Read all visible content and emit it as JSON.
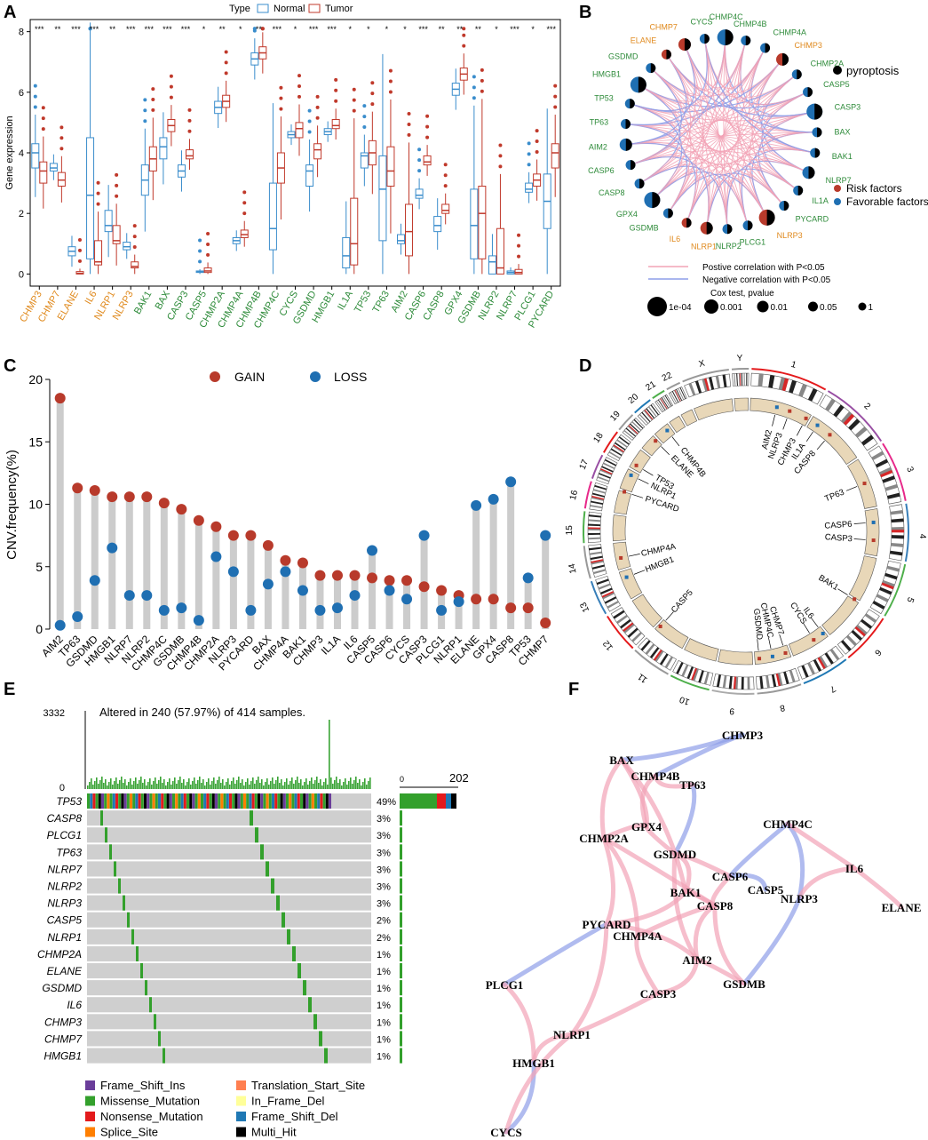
{
  "panel_labels": {
    "a": "A",
    "b": "B",
    "c": "C",
    "d": "D",
    "e": "E",
    "f": "F"
  },
  "colors": {
    "normal": "#3a8dcc",
    "tumor": "#c0392b",
    "risk_label": "#e08a1e",
    "fav_label": "#2e8b3a",
    "gain": "#b83a2b",
    "loss": "#1f6fb2",
    "stick": "#cccccc",
    "chrom_fill": "#e8d7b8",
    "pos_corr": "#f2a3b6",
    "neg_corr": "#8e9ee8",
    "missense": "#3aa335",
    "grey_cell": "#cfcfcf"
  },
  "chart_data": [
    {
      "panel": "A",
      "type": "box",
      "ylabel": "Gene expression",
      "legend_title": "Type",
      "legend": [
        "Normal",
        "Tumor"
      ],
      "ylim": [
        -0.4,
        8.4
      ],
      "yticks": [
        "0",
        "2",
        "4",
        "6",
        "8"
      ],
      "genes": [
        {
          "name": "CHMP3",
          "risk": true,
          "sig": "***",
          "normal": [
            3.5,
            4.0,
            4.3,
            4.5
          ],
          "tumor": [
            3.0,
            3.4,
            3.7,
            3.9
          ]
        },
        {
          "name": "CHMP7",
          "risk": true,
          "sig": "**",
          "normal": [
            3.4,
            3.5,
            3.65,
            3.75
          ],
          "tumor": [
            2.9,
            3.1,
            3.35,
            3.55
          ]
        },
        {
          "name": "ELANE",
          "risk": true,
          "sig": "***",
          "normal": [
            0.6,
            0.75,
            0.9,
            1.1
          ],
          "tumor": [
            0.0,
            0.02,
            0.08,
            0.25
          ]
        },
        {
          "name": "IL6",
          "risk": true,
          "sig": "***",
          "normal": [
            0.5,
            2.6,
            4.5,
            5.8
          ],
          "tumor": [
            0.3,
            0.4,
            1.1,
            3.6
          ]
        },
        {
          "name": "NLRP1",
          "risk": true,
          "sig": "**",
          "normal": [
            1.4,
            1.6,
            2.1,
            2.6
          ],
          "tumor": [
            1.0,
            1.1,
            1.6,
            2.1
          ]
        },
        {
          "name": "NLRP3",
          "risk": true,
          "sig": "***",
          "normal": [
            0.8,
            0.9,
            1.05,
            1.3
          ],
          "tumor": [
            0.2,
            0.25,
            0.4,
            0.7
          ]
        },
        {
          "name": "BAK1",
          "risk": false,
          "sig": "***",
          "normal": [
            2.6,
            3.1,
            3.6,
            4.0
          ],
          "tumor": [
            3.4,
            3.8,
            4.2,
            4.6
          ]
        },
        {
          "name": "BAX",
          "risk": false,
          "sig": "***",
          "normal": [
            3.8,
            4.2,
            4.5,
            4.8
          ],
          "tumor": [
            4.7,
            4.9,
            5.1,
            5.3
          ]
        },
        {
          "name": "CASP3",
          "risk": false,
          "sig": "***",
          "normal": [
            3.2,
            3.4,
            3.6,
            3.9
          ],
          "tumor": [
            3.8,
            3.9,
            4.1,
            4.5
          ]
        },
        {
          "name": "CASP5",
          "risk": false,
          "sig": "*",
          "normal": [
            0.05,
            0.08,
            0.1,
            0.15
          ],
          "tumor": [
            0.05,
            0.1,
            0.2,
            0.4
          ]
        },
        {
          "name": "CHMP2A",
          "risk": false,
          "sig": "**",
          "normal": [
            5.3,
            5.5,
            5.7,
            5.9
          ],
          "tumor": [
            5.5,
            5.7,
            5.9,
            6.2
          ]
        },
        {
          "name": "CHMP4A",
          "risk": false,
          "sig": "*",
          "normal": [
            1.0,
            1.1,
            1.2,
            1.4
          ],
          "tumor": [
            1.2,
            1.3,
            1.45,
            1.6
          ]
        },
        {
          "name": "CHMP4B",
          "risk": false,
          "sig": "**",
          "normal": [
            6.9,
            7.1,
            7.3,
            7.5
          ],
          "tumor": [
            7.1,
            7.3,
            7.5,
            7.8
          ]
        },
        {
          "name": "CHMP4C",
          "risk": false,
          "sig": "***",
          "normal": [
            0.8,
            1.5,
            3.0,
            3.9
          ],
          "tumor": [
            3.0,
            3.5,
            4.0,
            4.5
          ]
        },
        {
          "name": "CYCS",
          "risk": false,
          "sig": "*",
          "normal": [
            4.5,
            4.6,
            4.7,
            4.9
          ],
          "tumor": [
            4.5,
            4.8,
            5.0,
            5.3
          ]
        },
        {
          "name": "GSDMD",
          "risk": false,
          "sig": "***",
          "normal": [
            2.9,
            3.4,
            3.6,
            4.0
          ],
          "tumor": [
            3.8,
            4.1,
            4.3,
            4.6
          ]
        },
        {
          "name": "HMGB1",
          "risk": false,
          "sig": "***",
          "normal": [
            4.6,
            4.7,
            4.8,
            5.0
          ],
          "tumor": [
            4.8,
            4.9,
            5.1,
            5.3
          ]
        },
        {
          "name": "IL1A",
          "risk": false,
          "sig": "*",
          "normal": [
            0.2,
            0.6,
            1.2,
            3.5
          ],
          "tumor": [
            0.3,
            1.0,
            2.5,
            3.6
          ]
        },
        {
          "name": "TP53",
          "risk": false,
          "sig": "*",
          "normal": [
            3.5,
            3.9,
            4.0,
            4.4
          ],
          "tumor": [
            3.6,
            4.0,
            4.4,
            4.8
          ]
        },
        {
          "name": "TP63",
          "risk": false,
          "sig": "*",
          "normal": [
            1.1,
            2.8,
            3.9,
            4.6
          ],
          "tumor": [
            2.9,
            3.4,
            4.2,
            4.9
          ]
        },
        {
          "name": "AIM2",
          "risk": false,
          "sig": "*",
          "normal": [
            1.0,
            1.1,
            1.3,
            2.3
          ],
          "tumor": [
            0.6,
            1.4,
            2.3,
            3.8
          ]
        },
        {
          "name": "CASP6",
          "risk": false,
          "sig": "***",
          "normal": [
            2.5,
            2.6,
            2.8,
            3.0
          ],
          "tumor": [
            3.6,
            3.7,
            3.9,
            4.2
          ]
        },
        {
          "name": "CASP8",
          "risk": false,
          "sig": "**",
          "normal": [
            1.4,
            1.6,
            1.9,
            2.2
          ],
          "tumor": [
            2.0,
            2.1,
            2.3,
            2.6
          ]
        },
        {
          "name": "GPX4",
          "risk": false,
          "sig": "**",
          "normal": [
            5.9,
            6.1,
            6.3,
            6.5
          ],
          "tumor": [
            6.4,
            6.6,
            6.8,
            7.1
          ]
        },
        {
          "name": "GSDMB",
          "risk": false,
          "sig": "**",
          "normal": [
            0.5,
            1.6,
            2.8,
            3.1
          ],
          "tumor": [
            0.5,
            2.0,
            2.9,
            3.8
          ]
        },
        {
          "name": "NLRP2",
          "risk": false,
          "sig": "*",
          "normal": [
            0.0,
            0.4,
            0.6,
            2.8
          ],
          "tumor": [
            0.0,
            0.2,
            1.5,
            4.0
          ]
        },
        {
          "name": "NLRP7",
          "risk": false,
          "sig": "***",
          "normal": [
            0.0,
            0.05,
            0.1,
            0.15
          ],
          "tumor": [
            0.0,
            0.05,
            0.15,
            0.6
          ]
        },
        {
          "name": "PLCG1",
          "risk": false,
          "sig": "*",
          "normal": [
            2.7,
            2.8,
            3.0,
            3.2
          ],
          "tumor": [
            2.9,
            3.1,
            3.3,
            3.6
          ]
        },
        {
          "name": "PYCARD",
          "risk": false,
          "sig": "***",
          "normal": [
            1.5,
            2.4,
            3.3,
            4.4
          ],
          "tumor": [
            3.5,
            4.0,
            4.3,
            4.8
          ]
        }
      ]
    },
    {
      "panel": "B",
      "type": "network",
      "nodes": [
        {
          "name": "CHMP4C",
          "risk": false
        },
        {
          "name": "CHMP4B",
          "risk": false
        },
        {
          "name": "CHMP4A",
          "risk": false
        },
        {
          "name": "CHMP3",
          "risk": true
        },
        {
          "name": "CHMP2A",
          "risk": false
        },
        {
          "name": "CASP5",
          "risk": false
        },
        {
          "name": "CASP3",
          "risk": false
        },
        {
          "name": "BAX",
          "risk": false
        },
        {
          "name": "BAK1",
          "risk": false
        },
        {
          "name": "NLRP7",
          "risk": false
        },
        {
          "name": "IL1A",
          "risk": false
        },
        {
          "name": "PYCARD",
          "risk": false
        },
        {
          "name": "NLRP3",
          "risk": true
        },
        {
          "name": "PLCG1",
          "risk": false
        },
        {
          "name": "NLRP2",
          "risk": false
        },
        {
          "name": "NLRP1",
          "risk": true
        },
        {
          "name": "IL6",
          "risk": true
        },
        {
          "name": "GSDMB",
          "risk": false
        },
        {
          "name": "GPX4",
          "risk": false
        },
        {
          "name": "CASP8",
          "risk": false
        },
        {
          "name": "CASP6",
          "risk": false
        },
        {
          "name": "AIM2",
          "risk": false
        },
        {
          "name": "TP63",
          "risk": false
        },
        {
          "name": "TP53",
          "risk": false
        },
        {
          "name": "HMGB1",
          "risk": false
        },
        {
          "name": "GSDMD",
          "risk": false
        },
        {
          "name": "ELANE",
          "risk": true
        },
        {
          "name": "CHMP7",
          "risk": true
        },
        {
          "name": "CYCS",
          "risk": false
        }
      ],
      "legend_pyroptosis": "pyroptosis",
      "legend_risk": "Risk factors",
      "legend_fav": "Favorable factors",
      "legend_pos": "Postive correlation with P<0.05",
      "legend_neg": "Negative correlation with P<0.05",
      "legend_cox_title": "Cox test, pvalue",
      "cox_levels": [
        "1e-04",
        "0.001",
        "0.01",
        "0.05",
        "1"
      ]
    },
    {
      "panel": "C",
      "type": "lollipop",
      "ylabel": "CNV.frequency(%)",
      "legend": [
        "GAIN",
        "LOSS"
      ],
      "ylim": [
        0,
        20
      ],
      "yticks": [
        "0",
        "5",
        "10",
        "15",
        "20"
      ],
      "categories": [
        "AIM2",
        "TP63",
        "GSDMD",
        "HMGB1",
        "NLRP7",
        "NLRP2",
        "CHMP4C",
        "GSDMB",
        "CHMP4B",
        "CHMP2A",
        "NLRP3",
        "PYCARD",
        "BAX",
        "CHMP4A",
        "BAK1",
        "CHMP3",
        "IL1A",
        "IL6",
        "CASP5",
        "CASP6",
        "CYCS",
        "CASP3",
        "PLCG1",
        "NLRP1",
        "ELANE",
        "GPX4",
        "CASP8",
        "TP53",
        "CHMP7"
      ],
      "gain": [
        18.5,
        11.3,
        11.1,
        10.6,
        10.6,
        10.6,
        10.1,
        9.6,
        8.7,
        8.2,
        7.5,
        7.5,
        6.7,
        5.5,
        5.3,
        4.3,
        4.3,
        4.3,
        4.1,
        3.9,
        3.9,
        3.4,
        3.1,
        2.7,
        2.4,
        2.4,
        1.7,
        1.7,
        0.5
      ],
      "loss": [
        0.3,
        1.0,
        3.9,
        6.5,
        2.7,
        2.7,
        1.5,
        1.7,
        0.7,
        5.8,
        4.6,
        1.5,
        3.6,
        4.6,
        3.1,
        1.5,
        1.7,
        2.7,
        6.3,
        3.1,
        2.4,
        7.5,
        1.5,
        2.2,
        9.9,
        10.4,
        11.8,
        4.1,
        7.5
      ]
    },
    {
      "panel": "D",
      "type": "circos",
      "chromosomes": [
        "1",
        "2",
        "3",
        "4",
        "5",
        "6",
        "7",
        "8",
        "9",
        "10",
        "11",
        "12",
        "13",
        "14",
        "15",
        "16",
        "17",
        "18",
        "19",
        "20",
        "21",
        "22",
        "X",
        "Y"
      ],
      "genes": [
        {
          "name": "AIM2",
          "angle": 14
        },
        {
          "name": "NLRP3",
          "angle": 20
        },
        {
          "name": "CHMP3",
          "angle": 28
        },
        {
          "name": "IL1A",
          "angle": 34
        },
        {
          "name": "CASP8",
          "angle": 41
        },
        {
          "name": "TP63",
          "angle": 68
        },
        {
          "name": "CASP6",
          "angle": 86
        },
        {
          "name": "CASP3",
          "angle": 94
        },
        {
          "name": "BAK1",
          "angle": 122
        },
        {
          "name": "IL6",
          "angle": 143
        },
        {
          "name": "CYCS",
          "angle": 148
        },
        {
          "name": "CHMP7",
          "angle": 162
        },
        {
          "name": "CHMP4C",
          "angle": 168
        },
        {
          "name": "GSDMD",
          "angle": 174
        },
        {
          "name": "CASP5",
          "angle": 222
        },
        {
          "name": "HMGB1",
          "angle": 249
        },
        {
          "name": "CHMP4A",
          "angle": 258
        },
        {
          "name": "PYCARD",
          "angle": 288
        },
        {
          "name": "NLRP1",
          "angle": 296
        },
        {
          "name": "TP53",
          "angle": 301
        },
        {
          "name": "ELANE",
          "angle": 315
        },
        {
          "name": "CHMP4B",
          "angle": 322
        }
      ]
    },
    {
      "panel": "E",
      "type": "oncoplot",
      "title": "Altered in 240 (57.97%) of 414 samples.",
      "top_max": "3332",
      "top_min": "0",
      "side_min": "0",
      "side_max": "202",
      "rows": [
        {
          "gene": "TP53",
          "pct": "49%"
        },
        {
          "gene": "CASP8",
          "pct": "3%"
        },
        {
          "gene": "PLCG1",
          "pct": "3%"
        },
        {
          "gene": "TP63",
          "pct": "3%"
        },
        {
          "gene": "NLRP7",
          "pct": "3%"
        },
        {
          "gene": "NLRP2",
          "pct": "3%"
        },
        {
          "gene": "NLRP3",
          "pct": "3%"
        },
        {
          "gene": "CASP5",
          "pct": "2%"
        },
        {
          "gene": "NLRP1",
          "pct": "2%"
        },
        {
          "gene": "CHMP2A",
          "pct": "1%"
        },
        {
          "gene": "ELANE",
          "pct": "1%"
        },
        {
          "gene": "GSDMD",
          "pct": "1%"
        },
        {
          "gene": "IL6",
          "pct": "1%"
        },
        {
          "gene": "CHMP3",
          "pct": "1%"
        },
        {
          "gene": "CHMP7",
          "pct": "1%"
        },
        {
          "gene": "HMGB1",
          "pct": "1%"
        }
      ],
      "legend": [
        {
          "label": "Frame_Shift_Ins",
          "color": "#6a3d9a"
        },
        {
          "label": "Translation_Start_Site",
          "color": "#ff7f50"
        },
        {
          "label": "Missense_Mutation",
          "color": "#33a02c"
        },
        {
          "label": "In_Frame_Del",
          "color": "#ffff99"
        },
        {
          "label": "Nonsense_Mutation",
          "color": "#e31a1c"
        },
        {
          "label": "Frame_Shift_Del",
          "color": "#1f78b4"
        },
        {
          "label": "Splice_Site",
          "color": "#ff7f00"
        },
        {
          "label": "Multi_Hit",
          "color": "#000000"
        }
      ]
    },
    {
      "panel": "F",
      "type": "correlation_network",
      "nodes": [
        "CHMP3",
        "BAX",
        "CHMP4B",
        "TP63",
        "GPX4",
        "CHMP2A",
        "GSDMD",
        "CHMP4C",
        "CASP6",
        "IL6",
        "BAK1",
        "CASP5",
        "NLRP3",
        "ELANE",
        "CASP8",
        "PYCARD",
        "CHMP4A",
        "AIM2",
        "GSDMB",
        "CASP3",
        "PLCG1",
        "NLRP1",
        "HMGB1",
        "CYCS"
      ]
    }
  ]
}
